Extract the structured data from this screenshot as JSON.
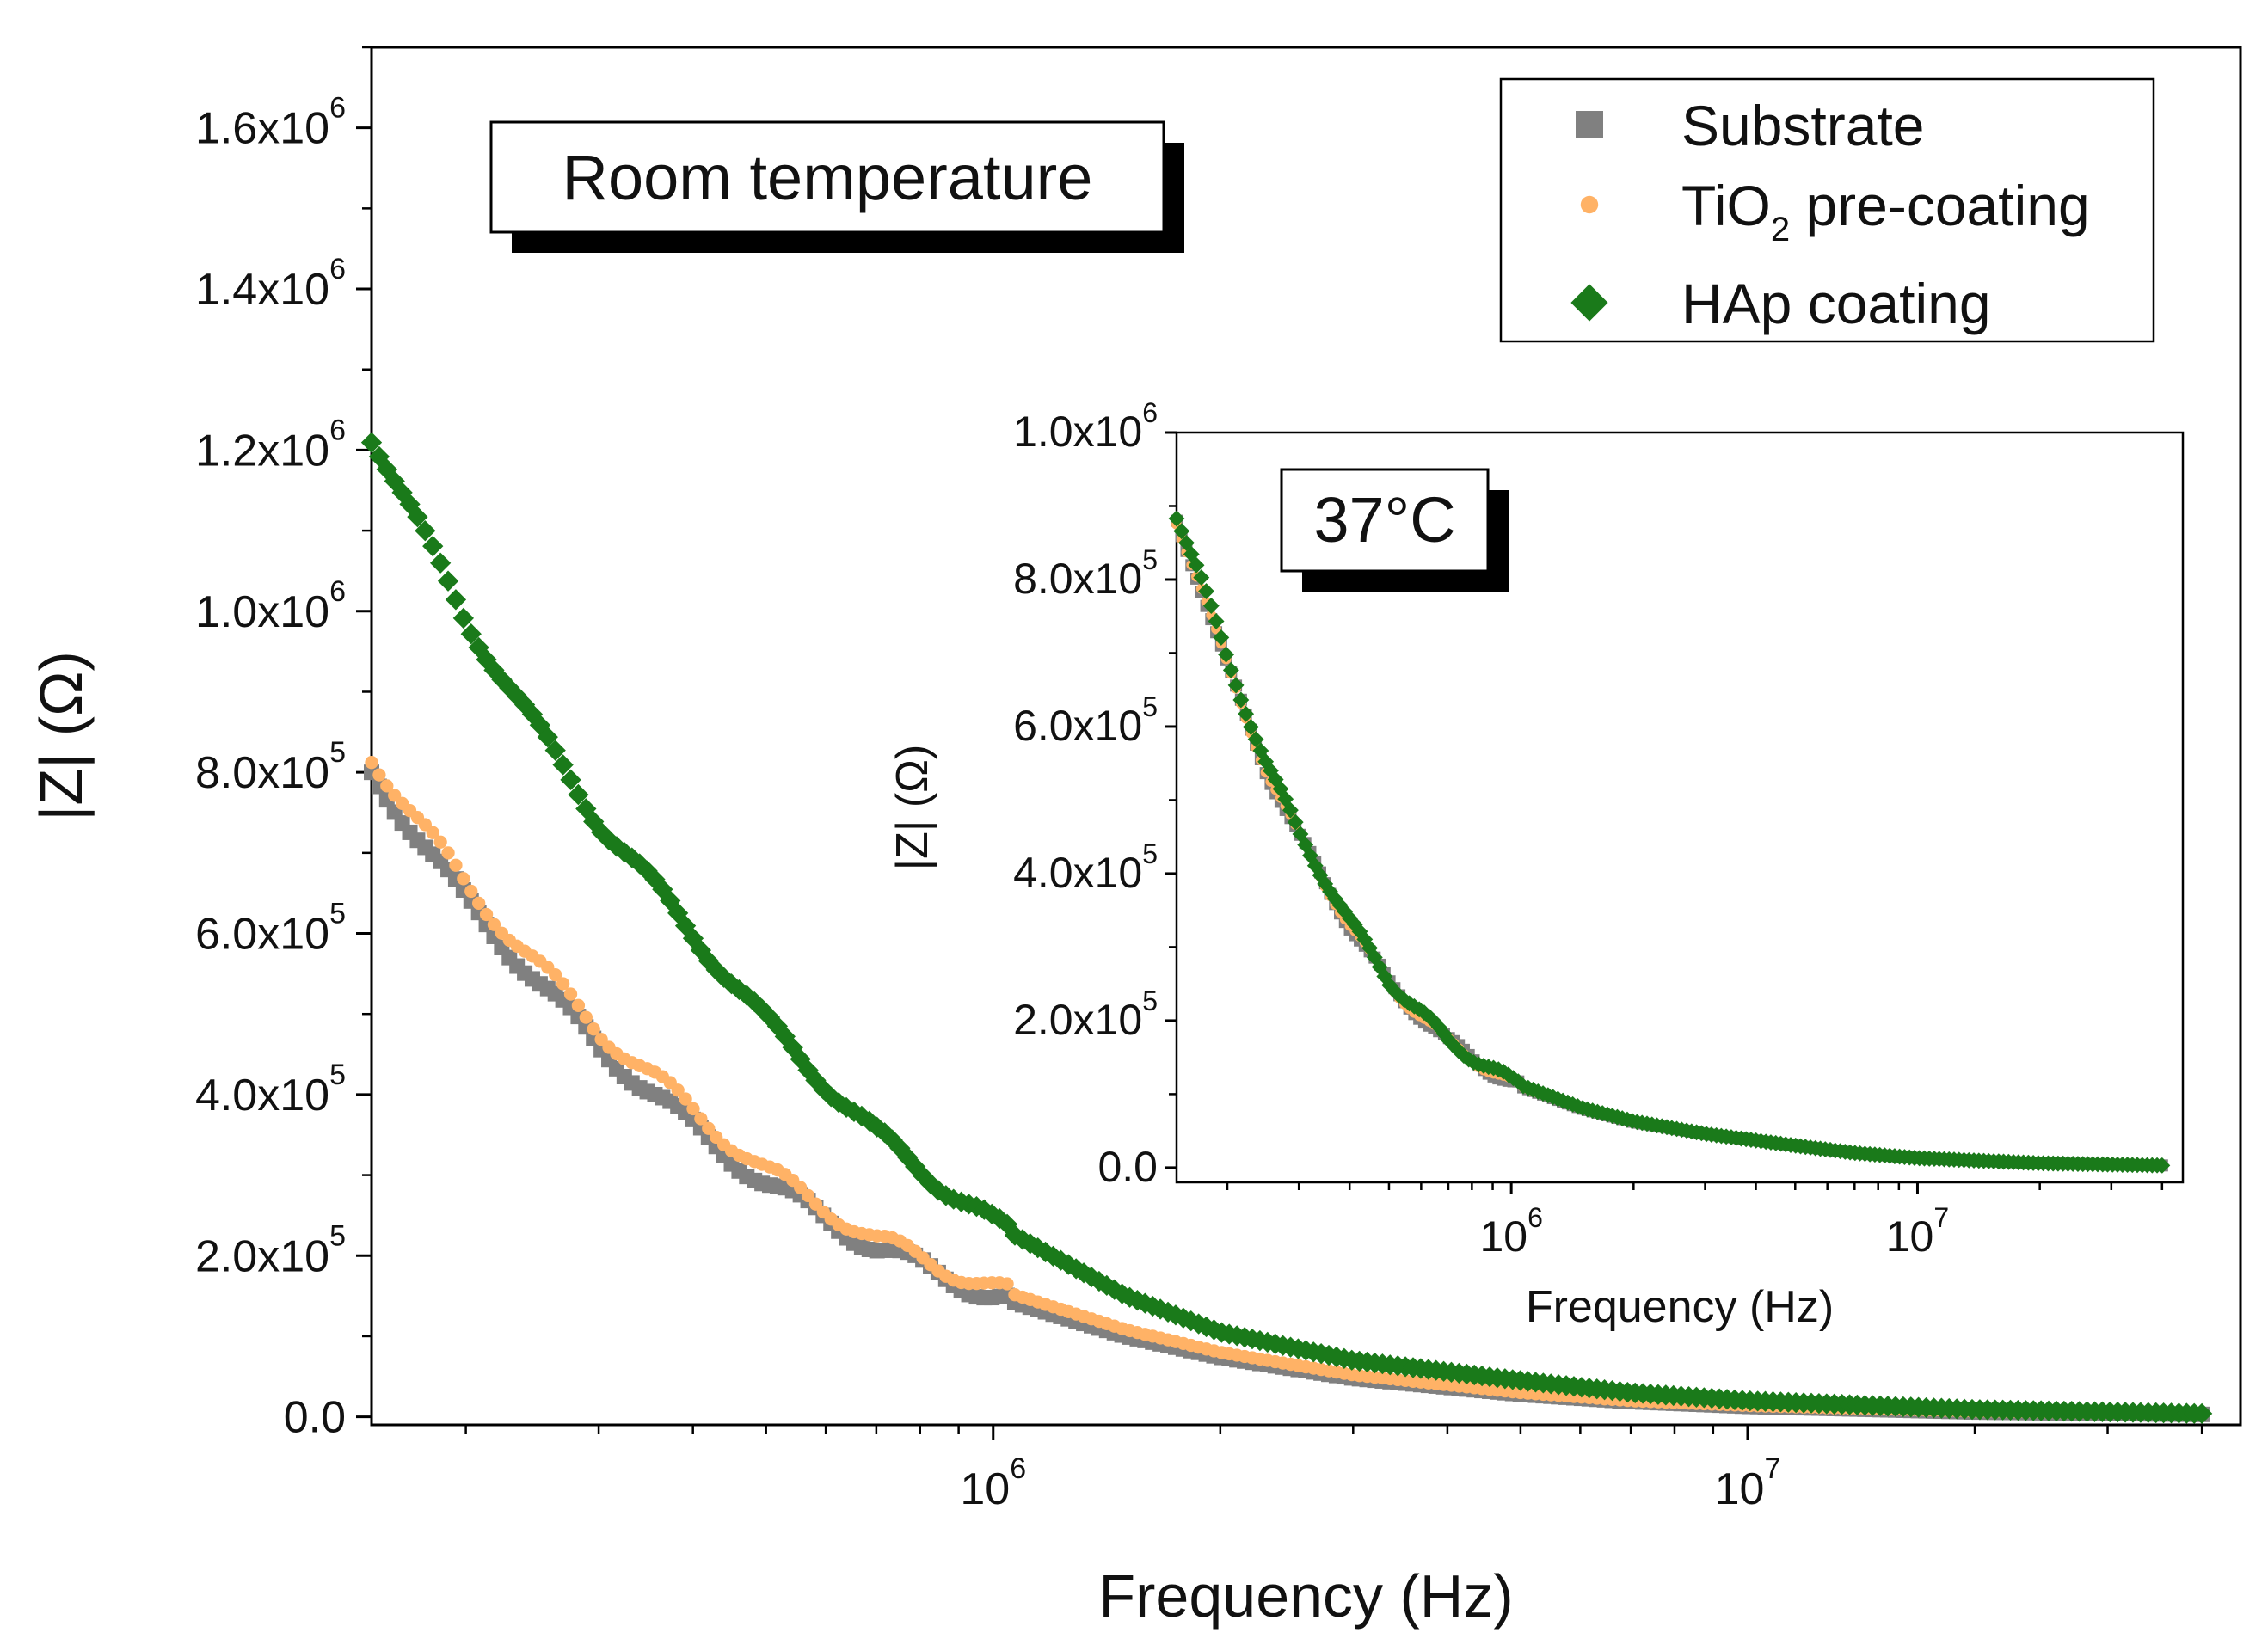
{
  "chart_data": [
    {
      "type": "scatter",
      "title": "",
      "annotation": "Room temperature",
      "xlabel": "Frequency (Hz)",
      "ylabel": "|Z| (Ω)",
      "x_scale": "log",
      "xlim": [
        150000,
        45000000
      ],
      "ylim": [
        -10000,
        1700000
      ],
      "x_ticks": [
        {
          "value": 1000000,
          "base": "10",
          "exp": "6"
        },
        {
          "value": 10000000,
          "base": "10",
          "exp": "7"
        }
      ],
      "y_ticks": [
        {
          "value": 0,
          "mantissa": "0.0",
          "exp": ""
        },
        {
          "value": 200000,
          "mantissa": "2.0x10",
          "exp": "5"
        },
        {
          "value": 400000,
          "mantissa": "4.0x10",
          "exp": "5"
        },
        {
          "value": 600000,
          "mantissa": "6.0x10",
          "exp": "5"
        },
        {
          "value": 800000,
          "mantissa": "8.0x10",
          "exp": "5"
        },
        {
          "value": 1000000,
          "mantissa": "1.0x10",
          "exp": "6"
        },
        {
          "value": 1200000,
          "mantissa": "1.2x10",
          "exp": "6"
        },
        {
          "value": 1400000,
          "mantissa": "1.4x10",
          "exp": "6"
        },
        {
          "value": 1600000,
          "mantissa": "1.6x10",
          "exp": "6"
        }
      ],
      "grid": false,
      "legend_position": "top-right",
      "series": [
        {
          "name": "Substrate",
          "marker": "square",
          "color": "#808080",
          "x": [
            150000,
            170000,
            200000,
            250000,
            300000,
            400000,
            500000,
            700000,
            1000000,
            1500000,
            2000000,
            3000000,
            5000000,
            7000000,
            10000000,
            20000000,
            40000000
          ],
          "y": [
            800000,
            730000,
            640000,
            540000,
            460000,
            360000,
            290000,
            210000,
            150000,
            100000,
            74000,
            48000,
            28000,
            19000,
            13000,
            6000,
            3000
          ]
        },
        {
          "name": "TiO",
          "name_sub": "2",
          "name_suffix": " pre-coating",
          "marker": "circle",
          "color": "#FFB266",
          "x": [
            150000,
            170000,
            200000,
            250000,
            300000,
            400000,
            500000,
            700000,
            1000000,
            1500000,
            2000000,
            3000000,
            5000000,
            7000000,
            10000000,
            20000000,
            40000000
          ],
          "y": [
            820000,
            750000,
            660000,
            560000,
            480000,
            380000,
            305000,
            220000,
            160000,
            108000,
            80000,
            52000,
            30000,
            20000,
            14000,
            6500,
            3000
          ]
        },
        {
          "name": "HAp coating",
          "marker": "diamond",
          "color": "#1A7A1A",
          "x": [
            150000,
            170000,
            200000,
            250000,
            300000,
            400000,
            500000,
            700000,
            1000000,
            1500000,
            2000000,
            3000000,
            5000000,
            7000000,
            10000000,
            20000000,
            40000000
          ],
          "y": [
            1220000,
            1120000,
            990000,
            850000,
            740000,
            600000,
            490000,
            350000,
            240000,
            150000,
            105000,
            70000,
            45000,
            30000,
            20000,
            9000,
            4000
          ]
        }
      ]
    },
    {
      "type": "scatter",
      "title": "",
      "annotation": "37°C",
      "xlabel": "Frequency (Hz)",
      "ylabel": "|Z| (Ω)",
      "x_scale": "log",
      "xlim": [
        150000,
        45000000
      ],
      "ylim": [
        -20000,
        1000000
      ],
      "x_ticks": [
        {
          "value": 1000000,
          "base": "10",
          "exp": "6"
        },
        {
          "value": 10000000,
          "base": "10",
          "exp": "7"
        }
      ],
      "y_ticks": [
        {
          "value": 0,
          "mantissa": "0.0",
          "exp": ""
        },
        {
          "value": 200000,
          "mantissa": "2.0x10",
          "exp": "5"
        },
        {
          "value": 400000,
          "mantissa": "4.0x10",
          "exp": "5"
        },
        {
          "value": 600000,
          "mantissa": "6.0x10",
          "exp": "5"
        },
        {
          "value": 800000,
          "mantissa": "8.0x10",
          "exp": "5"
        },
        {
          "value": 1000000,
          "mantissa": "1.0x10",
          "exp": "6"
        }
      ],
      "grid": false,
      "series": [
        {
          "name": "Substrate",
          "marker": "square",
          "color": "#808080",
          "x": [
            150000,
            170000,
            200000,
            250000,
            300000,
            400000,
            500000,
            700000,
            1000000,
            1500000,
            2000000,
            3000000,
            5000000,
            7000000,
            10000000,
            20000000,
            40000000
          ],
          "y": [
            880000,
            800000,
            680000,
            540000,
            450000,
            330000,
            250000,
            170000,
            115000,
            80000,
            62000,
            46000,
            30000,
            20000,
            13000,
            6000,
            3000
          ]
        },
        {
          "name": "TiO2 pre-coating",
          "marker": "circle",
          "color": "#FFB266",
          "x": [
            150000,
            170000,
            200000,
            250000,
            300000,
            400000,
            500000,
            700000,
            1000000,
            1500000,
            2000000,
            3000000,
            5000000,
            7000000,
            10000000,
            20000000,
            40000000
          ],
          "y": [
            880000,
            800000,
            680000,
            540000,
            450000,
            330000,
            250000,
            170000,
            115000,
            80000,
            62000,
            46000,
            30000,
            20000,
            13000,
            6000,
            3000
          ]
        },
        {
          "name": "HAp coating",
          "marker": "diamond",
          "color": "#1A7A1A",
          "x": [
            150000,
            170000,
            200000,
            250000,
            300000,
            400000,
            500000,
            700000,
            1000000,
            1500000,
            2000000,
            3000000,
            5000000,
            7000000,
            10000000,
            20000000,
            40000000
          ],
          "y": [
            890000,
            810000,
            690000,
            550000,
            455000,
            335000,
            255000,
            172000,
            117000,
            81000,
            63000,
            46000,
            30000,
            20000,
            13000,
            6000,
            3000
          ]
        }
      ]
    }
  ]
}
